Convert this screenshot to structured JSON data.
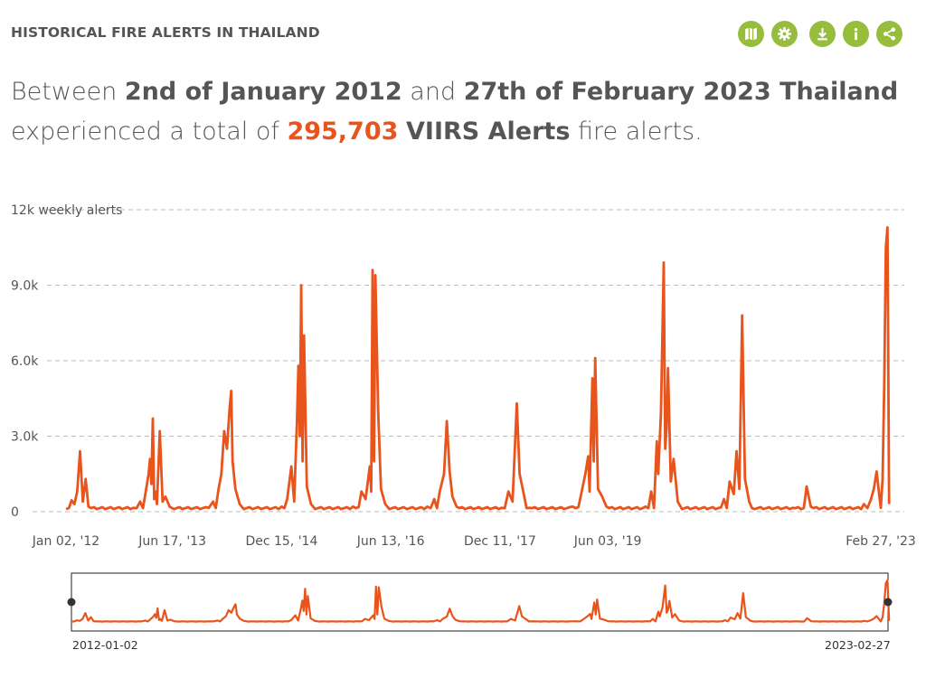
{
  "header": {
    "title": "HISTORICAL FIRE ALERTS IN THAILAND"
  },
  "toolbar": {
    "buttons": [
      {
        "name": "map-icon",
        "label": "map"
      },
      {
        "name": "gear-icon",
        "label": "settings"
      },
      {
        "name": "download-icon",
        "label": "download"
      },
      {
        "name": "info-icon",
        "label": "info"
      },
      {
        "name": "share-icon",
        "label": "share"
      }
    ],
    "accent": "#97bd3d"
  },
  "sentence": {
    "p1": "Between ",
    "start_date": "2nd of January 2012",
    "p2": " and ",
    "end_country": "27th of February 2023 Thailand",
    "p3": "experienced a total of ",
    "count": "295,703",
    "p4": " ",
    "dataset": "VIIRS Alerts",
    "p5": " fire alerts."
  },
  "brush": {
    "start_label": "2012-01-02",
    "end_label": "2023-02-27"
  },
  "chart_data": {
    "type": "line",
    "title": "",
    "xlabel": "",
    "ylabel": "weekly alerts",
    "ylim": [
      0,
      12000
    ],
    "y_ticks": [
      0,
      3000,
      6000,
      9000,
      12000
    ],
    "y_tick_labels": [
      "0",
      "3.0k",
      "6.0k",
      "9.0k",
      "12k weekly alerts"
    ],
    "x_ticks": [
      {
        "date": "2012-01-02",
        "label": "Jan 02, '12"
      },
      {
        "date": "2013-06-17",
        "label": "Jun 17, '13"
      },
      {
        "date": "2014-12-15",
        "label": "Dec 15, '14"
      },
      {
        "date": "2016-06-13",
        "label": "Jun 13, '16"
      },
      {
        "date": "2017-12-11",
        "label": "Dec 11, '17"
      },
      {
        "date": "2019-06-03",
        "label": "Jun 03, '19"
      },
      {
        "date": "2023-02-27",
        "label": "Feb 27, '23"
      }
    ],
    "x_range": [
      "2012-01-02",
      "2023-02-27"
    ],
    "grid": true,
    "line_color": "#e9541c",
    "baseline": 100,
    "series": [
      {
        "values": [
          [
            "2012-01-02",
            100
          ],
          [
            "2012-01-30",
            450
          ],
          [
            "2012-02-13",
            300
          ],
          [
            "2012-02-27",
            800
          ],
          [
            "2012-03-12",
            2400
          ],
          [
            "2012-03-26",
            400
          ],
          [
            "2012-04-09",
            1300
          ],
          [
            "2012-04-23",
            200
          ],
          [
            "2012-06-04",
            100
          ],
          [
            "2012-12-03",
            150
          ],
          [
            "2013-01-07",
            400
          ],
          [
            "2013-02-04",
            800
          ],
          [
            "2013-02-18",
            1500
          ],
          [
            "2013-02-25",
            2100
          ],
          [
            "2013-03-04",
            1100
          ],
          [
            "2013-03-11",
            3700
          ],
          [
            "2013-03-18",
            500
          ],
          [
            "2013-03-25",
            800
          ],
          [
            "2013-04-01",
            300
          ],
          [
            "2013-04-15",
            3200
          ],
          [
            "2013-04-29",
            400
          ],
          [
            "2013-05-13",
            600
          ],
          [
            "2013-06-03",
            200
          ],
          [
            "2013-06-24",
            100
          ],
          [
            "2013-12-16",
            150
          ],
          [
            "2014-01-06",
            400
          ],
          [
            "2014-02-03",
            900
          ],
          [
            "2014-02-17",
            1500
          ],
          [
            "2014-03-03",
            3200
          ],
          [
            "2014-03-17",
            2500
          ],
          [
            "2014-03-31",
            4200
          ],
          [
            "2014-04-07",
            4800
          ],
          [
            "2014-04-14",
            2000
          ],
          [
            "2014-04-28",
            900
          ],
          [
            "2014-05-19",
            300
          ],
          [
            "2014-06-09",
            100
          ],
          [
            "2014-12-15",
            200
          ],
          [
            "2015-01-12",
            500
          ],
          [
            "2015-02-02",
            1800
          ],
          [
            "2015-02-16",
            400
          ],
          [
            "2015-03-02",
            3600
          ],
          [
            "2015-03-09",
            5800
          ],
          [
            "2015-03-16",
            3000
          ],
          [
            "2015-03-23",
            9000
          ],
          [
            "2015-03-30",
            2000
          ],
          [
            "2015-04-06",
            7000
          ],
          [
            "2015-04-20",
            1000
          ],
          [
            "2015-05-11",
            300
          ],
          [
            "2015-06-01",
            100
          ],
          [
            "2015-12-07",
            200
          ],
          [
            "2016-01-18",
            800
          ],
          [
            "2016-02-08",
            500
          ],
          [
            "2016-02-29",
            1800
          ],
          [
            "2016-03-07",
            800
          ],
          [
            "2016-03-14",
            9600
          ],
          [
            "2016-03-21",
            2000
          ],
          [
            "2016-03-28",
            9400
          ],
          [
            "2016-04-11",
            4000
          ],
          [
            "2016-04-25",
            900
          ],
          [
            "2016-05-16",
            300
          ],
          [
            "2016-06-06",
            100
          ],
          [
            "2016-12-12",
            200
          ],
          [
            "2017-01-16",
            500
          ],
          [
            "2017-02-13",
            800
          ],
          [
            "2017-03-06",
            1500
          ],
          [
            "2017-03-20",
            3600
          ],
          [
            "2017-04-03",
            1600
          ],
          [
            "2017-04-17",
            600
          ],
          [
            "2017-05-08",
            200
          ],
          [
            "2017-12-18",
            150
          ],
          [
            "2018-01-22",
            800
          ],
          [
            "2018-02-12",
            400
          ],
          [
            "2018-03-05",
            4300
          ],
          [
            "2018-03-19",
            1500
          ],
          [
            "2018-04-09",
            700
          ],
          [
            "2018-05-07",
            150
          ],
          [
            "2018-12-10",
            200
          ],
          [
            "2019-01-21",
            700
          ],
          [
            "2019-02-11",
            1500
          ],
          [
            "2019-02-25",
            2200
          ],
          [
            "2019-03-04",
            800
          ],
          [
            "2019-03-18",
            5300
          ],
          [
            "2019-03-25",
            2000
          ],
          [
            "2019-04-01",
            6100
          ],
          [
            "2019-04-15",
            900
          ],
          [
            "2019-05-06",
            600
          ],
          [
            "2019-05-27",
            200
          ],
          [
            "2019-12-09",
            200
          ],
          [
            "2020-01-06",
            800
          ],
          [
            "2020-02-03",
            2800
          ],
          [
            "2020-02-10",
            1500
          ],
          [
            "2020-02-24",
            3900
          ],
          [
            "2020-03-09",
            9900
          ],
          [
            "2020-03-16",
            2500
          ],
          [
            "2020-03-23",
            3300
          ],
          [
            "2020-03-30",
            5700
          ],
          [
            "2020-04-13",
            1200
          ],
          [
            "2020-04-27",
            2100
          ],
          [
            "2020-05-18",
            400
          ],
          [
            "2020-06-08",
            100
          ],
          [
            "2021-01-04",
            500
          ],
          [
            "2021-02-01",
            1200
          ],
          [
            "2021-02-22",
            700
          ],
          [
            "2021-03-08",
            2400
          ],
          [
            "2021-03-22",
            900
          ],
          [
            "2021-04-05",
            7800
          ],
          [
            "2021-04-19",
            1300
          ],
          [
            "2021-05-10",
            400
          ],
          [
            "2021-06-07",
            100
          ],
          [
            "2021-12-13",
            150
          ],
          [
            "2022-02-21",
            1000
          ],
          [
            "2022-03-14",
            200
          ],
          [
            "2022-12-05",
            300
          ],
          [
            "2023-01-09",
            500
          ],
          [
            "2023-01-23",
            900
          ],
          [
            "2023-02-06",
            1600
          ],
          [
            "2023-02-20",
            600
          ],
          [
            "2023-02-27",
            150
          ]
        ]
      }
    ],
    "tail_spikes": [
      1300,
      5000,
      10500,
      11300,
      300
    ]
  }
}
